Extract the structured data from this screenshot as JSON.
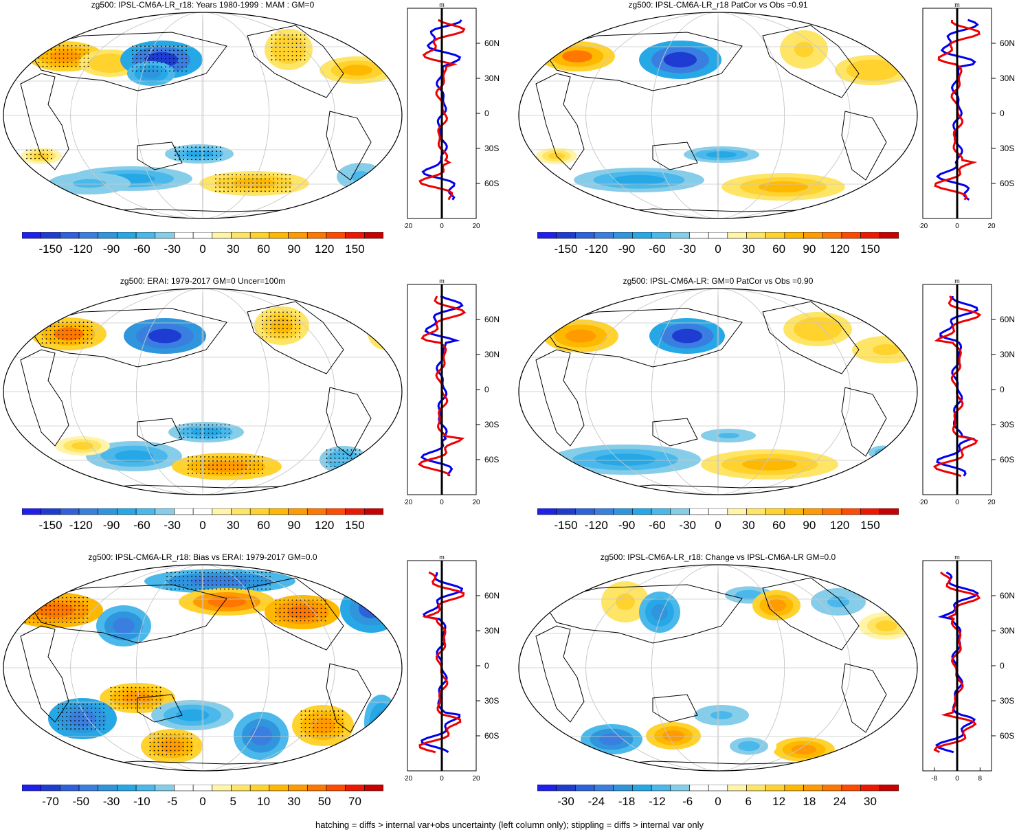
{
  "panels": [
    {
      "id": "p1",
      "title": "zg500: IPSL-CM6A-LR_r18: Years 1980-1999 : MAM : GM=0",
      "colorbar_ticks": [
        "-150",
        "-120",
        "-90",
        "-60",
        "-30",
        "0",
        "30",
        "60",
        "90",
        "120",
        "150"
      ],
      "profile_xticks": [
        "-20",
        "0",
        "20"
      ],
      "profile_xrange": [
        -20,
        20
      ],
      "stipple": true
    },
    {
      "id": "p2",
      "title": "zg500: IPSL-CM6A-LR_r18 PatCor vs Obs =0.91",
      "colorbar_ticks": [
        "-150",
        "-120",
        "-90",
        "-60",
        "-30",
        "0",
        "30",
        "60",
        "90",
        "120",
        "150"
      ],
      "profile_xticks": [
        "-20",
        "0",
        "20"
      ],
      "profile_xrange": [
        -20,
        20
      ],
      "stipple": false
    },
    {
      "id": "p3",
      "title": "zg500: ERAI: 1979-2017 GM=0 Uncer=100m",
      "colorbar_ticks": [
        "-150",
        "-120",
        "-90",
        "-60",
        "-30",
        "0",
        "30",
        "60",
        "90",
        "120",
        "150"
      ],
      "profile_xticks": [
        "-20",
        "0",
        "20"
      ],
      "profile_xrange": [
        -20,
        20
      ],
      "stipple": true
    },
    {
      "id": "p4",
      "title": "zg500: IPSL-CM6A-LR: GM=0 PatCor vs Obs =0.90",
      "colorbar_ticks": [
        "-150",
        "-120",
        "-90",
        "-60",
        "-30",
        "0",
        "30",
        "60",
        "90",
        "120",
        "150"
      ],
      "profile_xticks": [
        "-20",
        "0",
        "20"
      ],
      "profile_xrange": [
        -20,
        20
      ],
      "stipple": false
    },
    {
      "id": "p5",
      "title": "zg500: IPSL-CM6A-LR_r18: Bias vs ERAI: 1979-2017 GM=0.0",
      "colorbar_ticks": [
        "-70",
        "-50",
        "-30",
        "-10",
        "-5",
        "0",
        "5",
        "10",
        "30",
        "50",
        "70"
      ],
      "profile_xticks": [
        "-20",
        "0",
        "20"
      ],
      "profile_xrange": [
        -20,
        20
      ],
      "stipple": true
    },
    {
      "id": "p6",
      "title": "zg500: IPSL-CM6A-LR_r18: Change vs IPSL-CM6A-LR GM=0.0",
      "colorbar_ticks": [
        "-30",
        "-24",
        "-18",
        "-12",
        "-6",
        "0",
        "6",
        "12",
        "18",
        "24",
        "30"
      ],
      "profile_xticks": [
        "-8",
        "0",
        "8"
      ],
      "profile_xrange": [
        -12,
        12
      ],
      "stipple": false
    }
  ],
  "profile_unit": "m",
  "lat_ticks": [
    "60N",
    "30N",
    "0",
    "30S",
    "60S"
  ],
  "colormap": [
    "#2020ee",
    "#1e3cd2",
    "#2e62db",
    "#3a7fe0",
    "#2f95dd",
    "#27a8e6",
    "#4ab8ea",
    "#86cde9",
    "#ffffff",
    "#ffffff",
    "#fff4a8",
    "#ffe566",
    "#ffd22e",
    "#ffb800",
    "#ff9a00",
    "#ff7700",
    "#ff4a00",
    "#ee1800",
    "#c80000"
  ],
  "profile_colors": {
    "model": "#ee0000",
    "obs": "#0000ee",
    "zero": "#000000"
  },
  "footer": "hatching = diffs > internal var+obs uncertainty (left column only); stippling = diffs > internal var only"
}
